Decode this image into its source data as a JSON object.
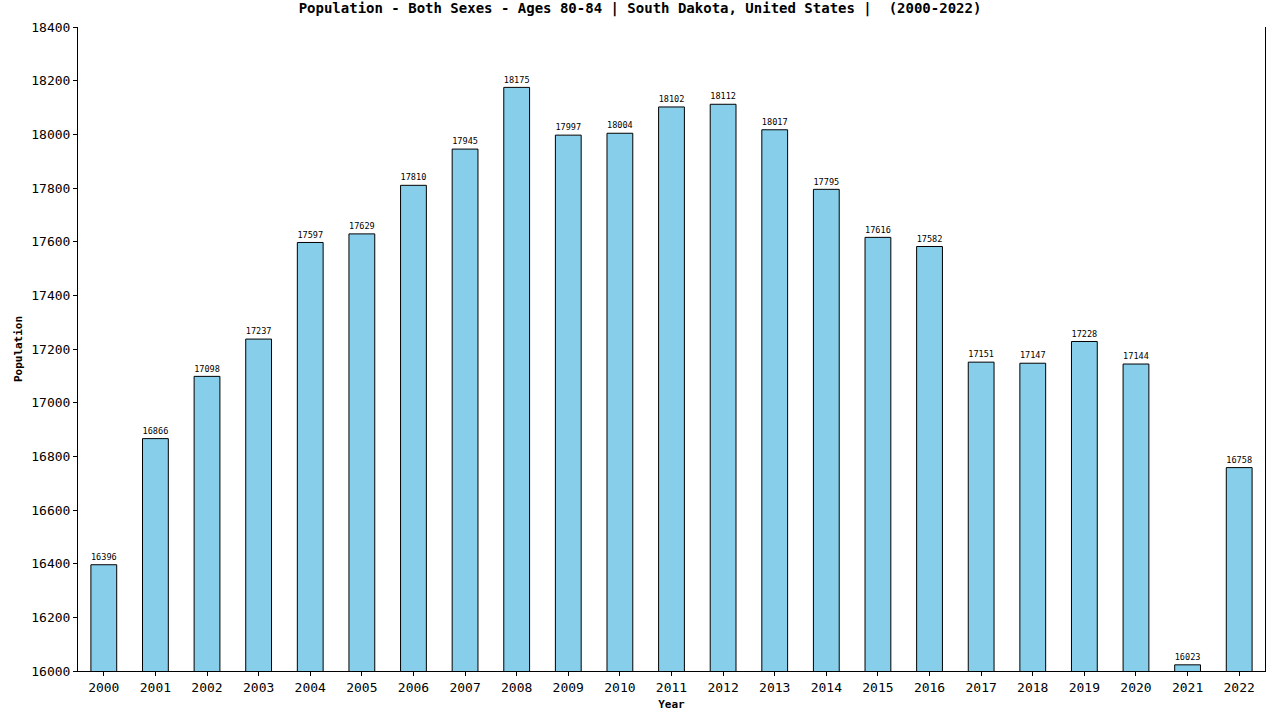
{
  "chart_data": {
    "type": "bar",
    "title": "Population - Both Sexes - Ages 80-84 | South Dakota, United States |  (2000-2022)",
    "x_label": "Year",
    "y_label": "Population",
    "categories": [
      "2000",
      "2001",
      "2002",
      "2003",
      "2004",
      "2005",
      "2006",
      "2007",
      "2008",
      "2009",
      "2010",
      "2011",
      "2012",
      "2013",
      "2014",
      "2015",
      "2016",
      "2017",
      "2018",
      "2019",
      "2020",
      "2021",
      "2022"
    ],
    "values": [
      16396,
      16866,
      17098,
      17237,
      17597,
      17629,
      17810,
      17945,
      18175,
      17997,
      18004,
      18102,
      18112,
      18017,
      17795,
      17616,
      17582,
      17151,
      17147,
      17228,
      17144,
      16023,
      16758
    ],
    "color": "#87ceeb",
    "ylim": [
      16000,
      18400
    ],
    "yticks": [
      16000,
      16200,
      16400,
      16600,
      16800,
      17000,
      17200,
      17400,
      17600,
      17800,
      18000,
      18200,
      18400
    ],
    "grid": false,
    "data_labels": true
  }
}
